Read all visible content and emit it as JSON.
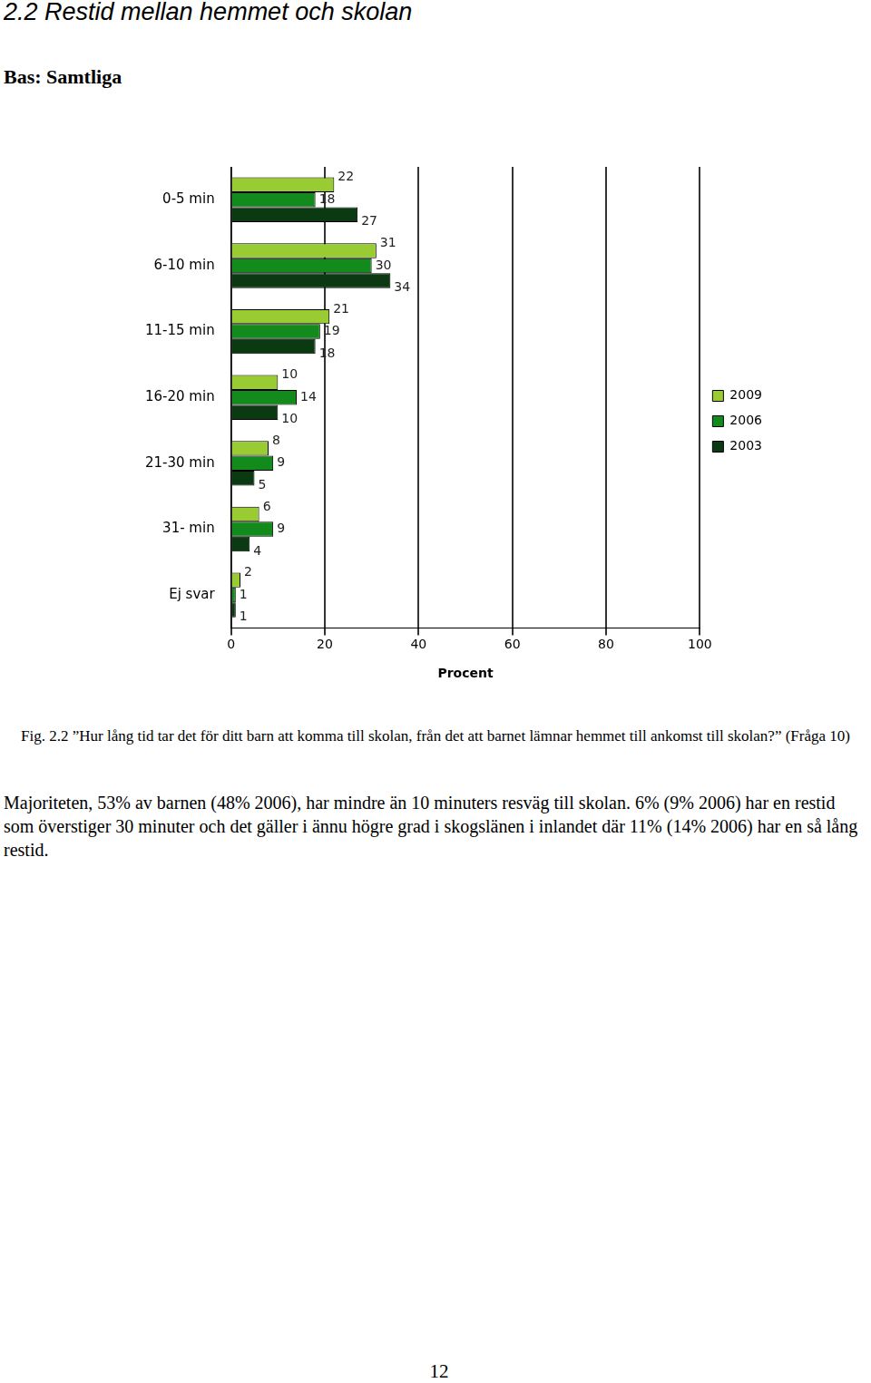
{
  "page": {
    "heading": "2.2 Restid mellan hemmet och skolan",
    "base": "Bas: Samtliga",
    "caption": "Fig. 2.2 ”Hur lång tid tar det för ditt barn att komma till skolan, från det att barnet lämnar hemmet till ankomst till skolan?” (Fråga 10)",
    "paragraph": "Majoriteten, 53% av barnen (48% 2006), har mindre än 10 minuters resväg till skolan. 6% (9% 2006) har en restid som överstiger 30 minuter och det gäller i ännu högre grad i skogslänen i inlandet där 11% (14% 2006) har en så lång restid.",
    "page_number": "12"
  },
  "chart_data": {
    "type": "bar",
    "orientation": "horizontal",
    "categories": [
      "0-5 min",
      "6-10 min",
      "11-15 min",
      "16-20 min",
      "21-30 min",
      "31- min",
      "Ej svar"
    ],
    "series": [
      {
        "name": "2009",
        "color": "#99cc33",
        "values": [
          22,
          31,
          21,
          10,
          8,
          6,
          2
        ]
      },
      {
        "name": "2006",
        "color": "#138a1c",
        "values": [
          18,
          30,
          19,
          14,
          9,
          9,
          1
        ]
      },
      {
        "name": "2003",
        "color": "#0b3a12",
        "values": [
          27,
          34,
          18,
          10,
          5,
          4,
          1
        ]
      }
    ],
    "x_label": "Procent",
    "xlim": [
      0,
      100
    ],
    "xticks": [
      0,
      20,
      40,
      60,
      80,
      100
    ],
    "grid": true,
    "legend": "right",
    "data_labels": true
  }
}
